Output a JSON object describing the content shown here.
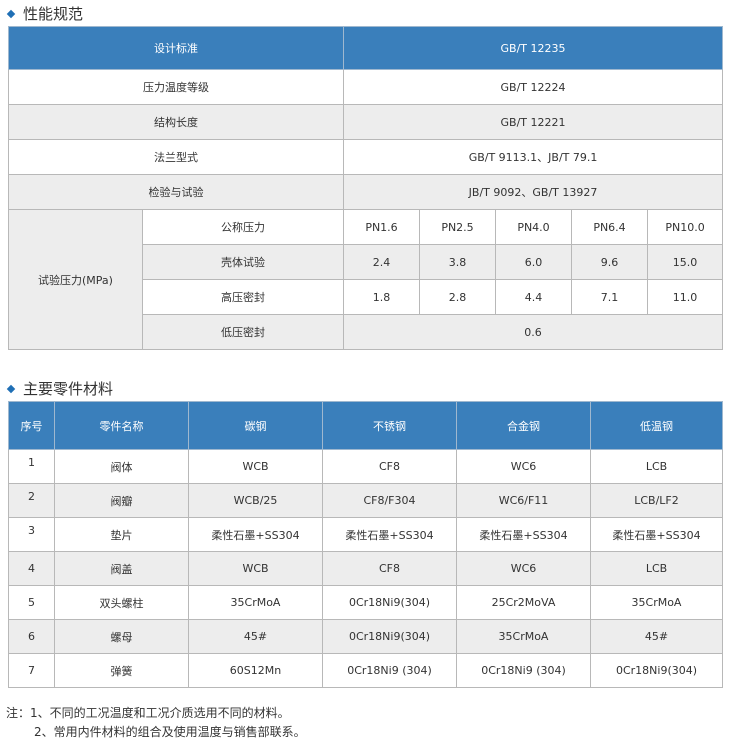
{
  "spec": {
    "title": "性能规范",
    "rows": [
      {
        "label": "设计标准",
        "value": "GB/T 12235"
      },
      {
        "label": "压力温度等级",
        "value": "GB/T 12224"
      },
      {
        "label": "结构长度",
        "value": "GB/T 12221"
      },
      {
        "label": "法兰型式",
        "value": "GB/T 9113.1、JB/T 79.1"
      },
      {
        "label": "检验与试验",
        "value": "JB/T 9092、GB/T 13927"
      }
    ],
    "test_pressure": {
      "label": "试验压力(MPa)",
      "rows": [
        {
          "label": "公称压力",
          "values": [
            "PN1.6",
            "PN2.5",
            "PN4.0",
            "PN6.4",
            "PN10.0"
          ]
        },
        {
          "label": "壳体试验",
          "values": [
            "2.4",
            "3.8",
            "6.0",
            "9.6",
            "15.0"
          ]
        },
        {
          "label": "高压密封",
          "values": [
            "1.8",
            "2.8",
            "4.4",
            "7.1",
            "11.0"
          ]
        }
      ],
      "low_seal": {
        "label": "低压密封",
        "value": "0.6"
      }
    }
  },
  "materials": {
    "title": "主要零件材料",
    "headers": [
      "序号",
      "零件名称",
      "碳钢",
      "不锈钢",
      "合金钢",
      "低温钢"
    ],
    "rows": [
      [
        "1",
        "阀体",
        "WCB",
        "CF8",
        "WC6",
        "LCB"
      ],
      [
        "2",
        "阀瓣",
        "WCB/25",
        "CF8/F304",
        "WC6/F11",
        "LCB/LF2"
      ],
      [
        "3",
        "垫片",
        "柔性石墨+SS304",
        "柔性石墨+SS304",
        "柔性石墨+SS304",
        "柔性石墨+SS304"
      ],
      [
        "4",
        "阀盖",
        "WCB",
        "CF8",
        "WC6",
        "LCB"
      ],
      [
        "5",
        "双头螺柱",
        "35CrMoA",
        "0Cr18Ni9(304)",
        "25Cr2MoVA",
        "35CrMoA"
      ],
      [
        "6",
        "螺母",
        "45#",
        "0Cr18Ni9(304)",
        "35CrMoA",
        "45#"
      ],
      [
        "7",
        "弹簧",
        "60S12Mn",
        "0Cr18Ni9 (304)",
        "0Cr18Ni9 (304)",
        "0Cr18Ni9(304)"
      ]
    ]
  },
  "notes": [
    "注：1、不同的工况温度和工况介质选用不同的材料。",
    "2、常用内件材料的组合及使用温度与销售部联系。"
  ],
  "colors": {
    "header": "#3a7fbb",
    "stripe": "#ededed",
    "bullet": "#1f6fb5"
  }
}
